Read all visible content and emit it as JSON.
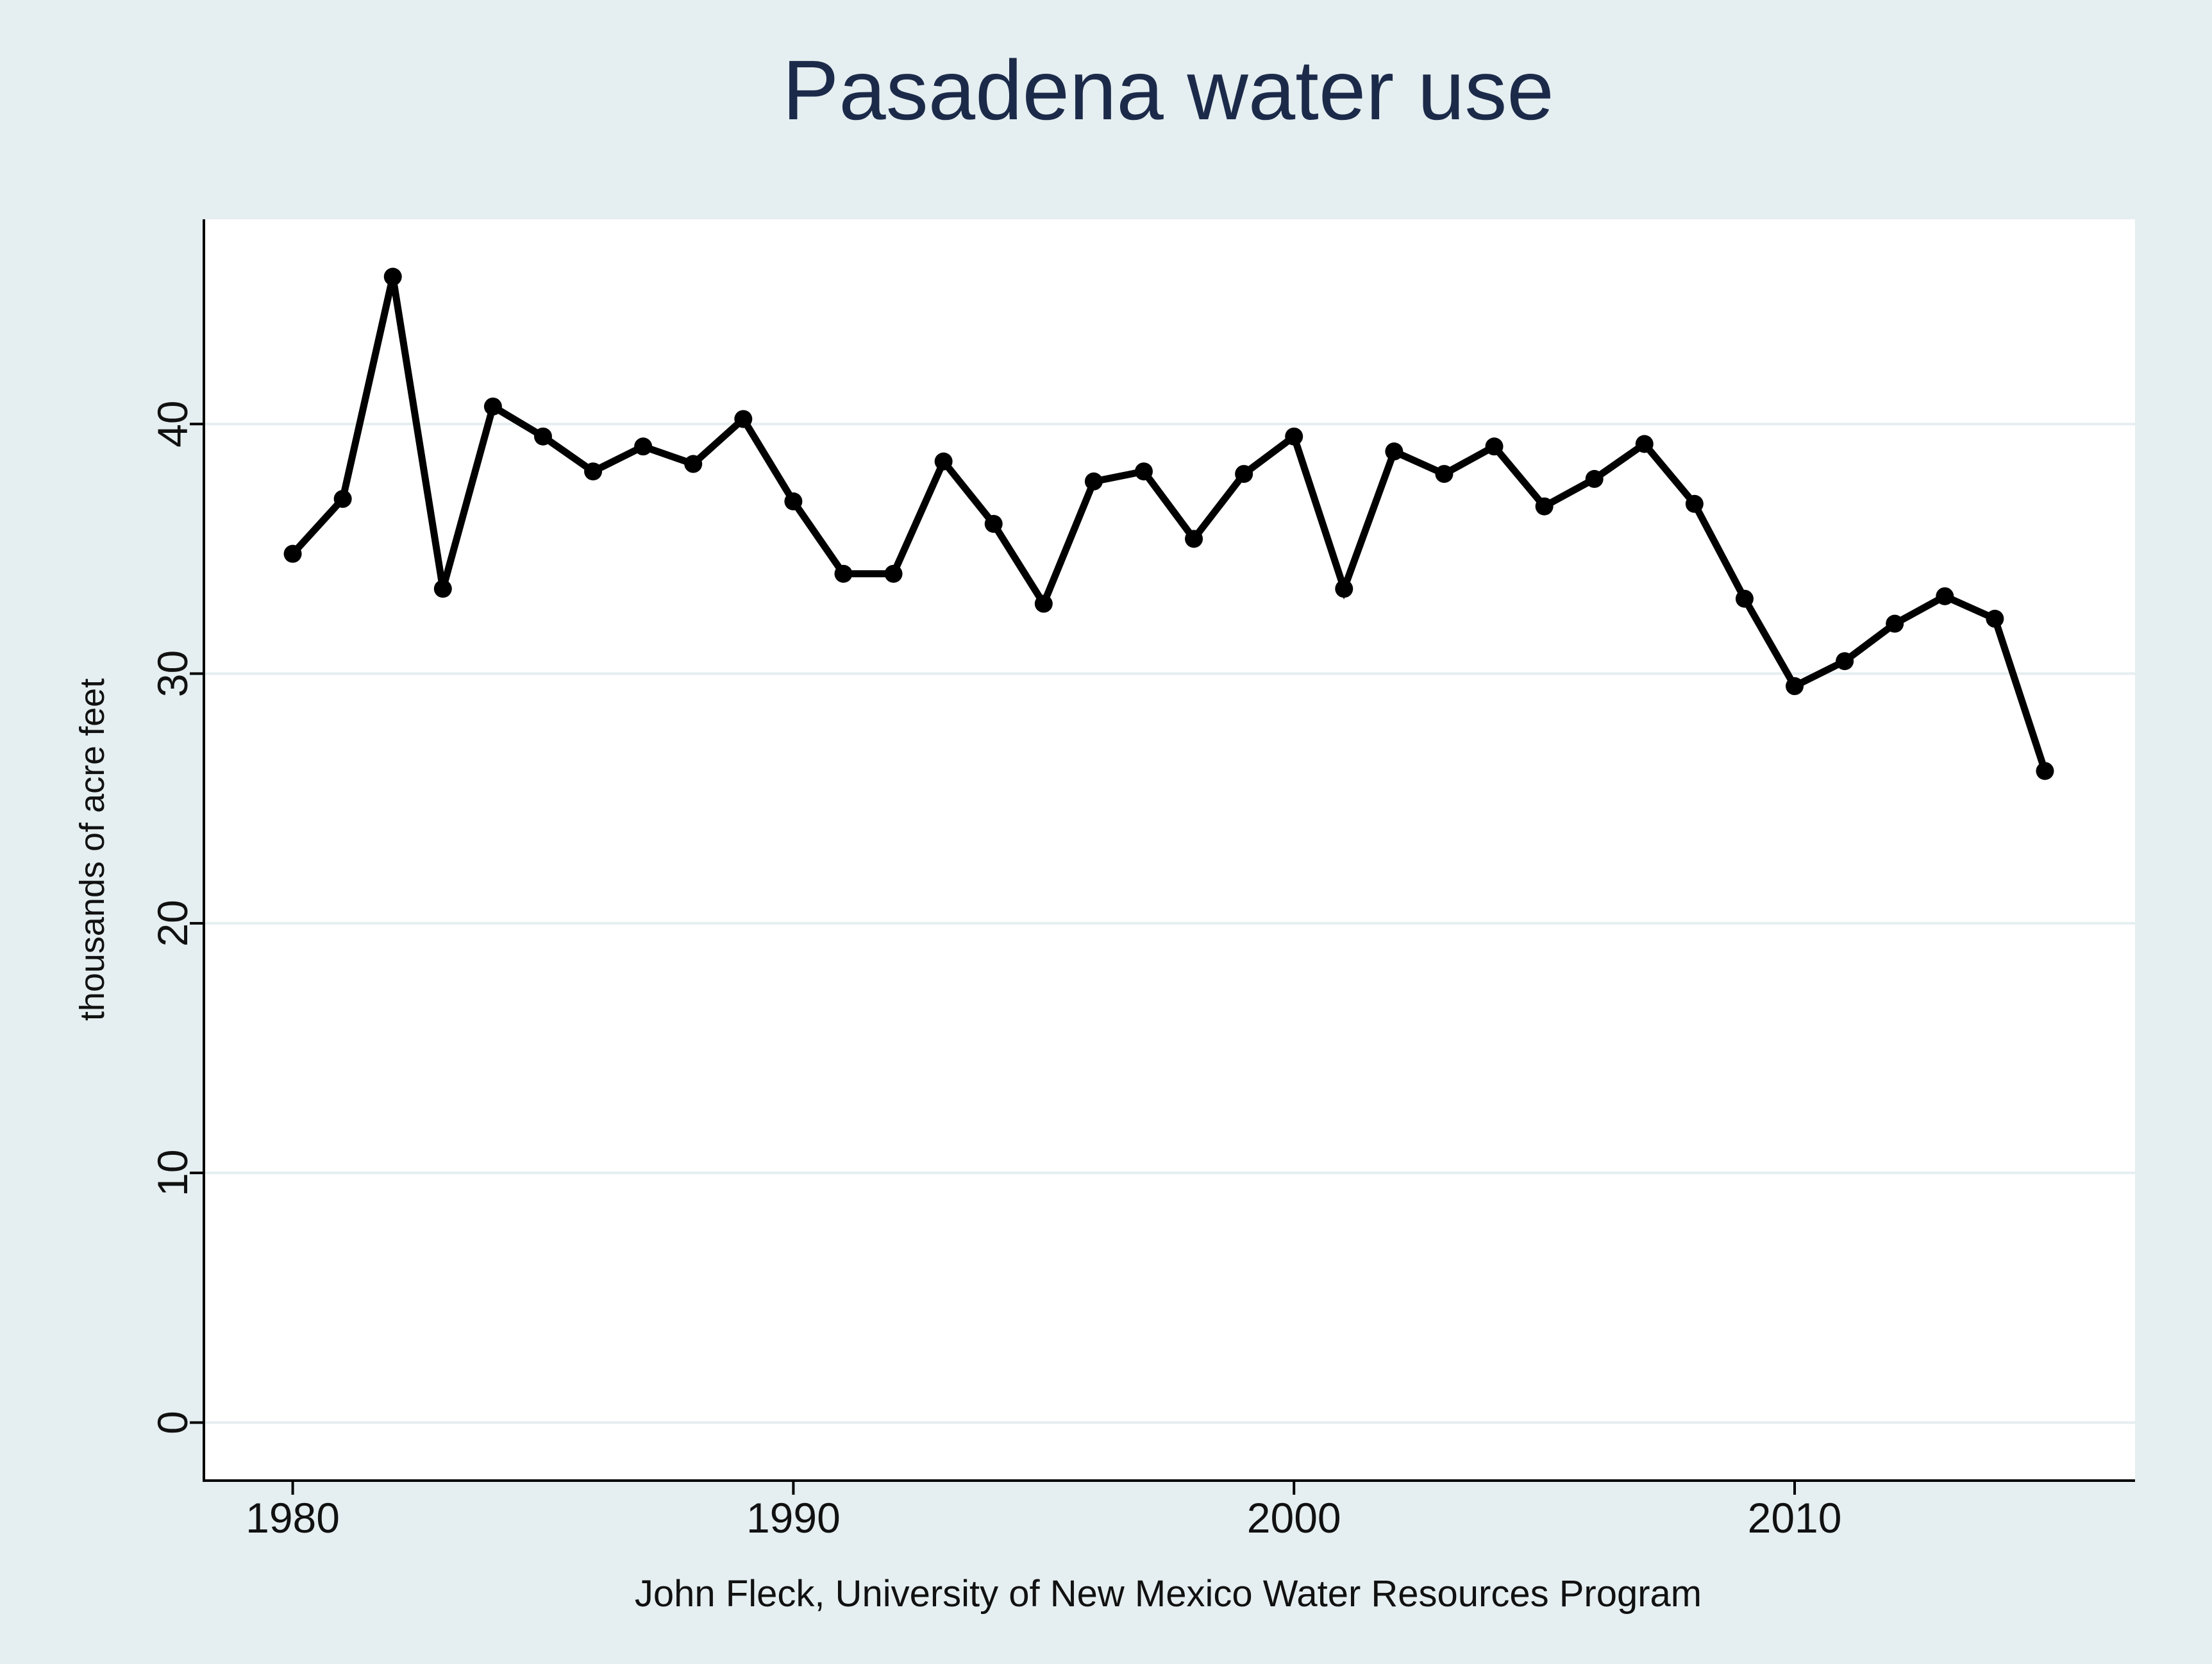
{
  "chart_data": {
    "type": "line",
    "title": "Pasadena water use",
    "xlabel": "John Fleck, University of New Mexico Water Resources Program",
    "ylabel": "thousands of acre feet",
    "x": [
      1980,
      1981,
      1982,
      1983,
      1984,
      1985,
      1986,
      1987,
      1988,
      1989,
      1990,
      1991,
      1992,
      1993,
      1994,
      1995,
      1996,
      1997,
      1998,
      1999,
      2000,
      2001,
      2002,
      2003,
      2004,
      2005,
      2006,
      2007,
      2008,
      2009,
      2010,
      2011,
      2012,
      2013,
      2014,
      2015
    ],
    "values": [
      34.8,
      37.0,
      45.9,
      33.4,
      40.7,
      39.5,
      38.1,
      39.1,
      38.4,
      40.2,
      36.9,
      34.0,
      34.0,
      38.5,
      36.0,
      32.8,
      37.7,
      38.1,
      35.4,
      38.0,
      39.5,
      33.4,
      38.9,
      38.0,
      39.1,
      36.7,
      37.8,
      39.2,
      36.8,
      33.0,
      29.5,
      30.5,
      32.0,
      33.1,
      32.2,
      26.1
    ],
    "xlim": [
      1978.2,
      2016.8
    ],
    "ylim": [
      -2.3,
      48.2
    ],
    "xticks": [
      "1980",
      "1990",
      "2000",
      "2010"
    ],
    "yticks": [
      "0",
      "10",
      "20",
      "30",
      "40"
    ],
    "grid": true,
    "colors": {
      "background": "#e5eef0",
      "plot": "#ffffff",
      "line": "#000000",
      "grid": "#e5eef0",
      "title": "#1c2a4a"
    }
  }
}
